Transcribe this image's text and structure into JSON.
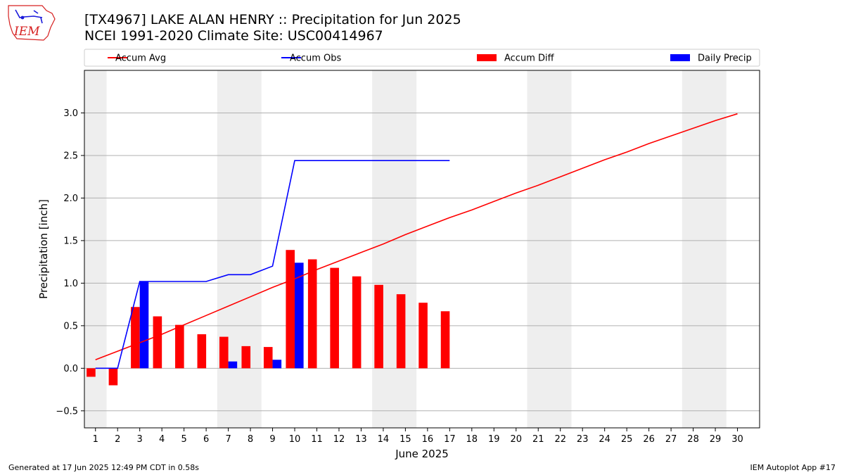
{
  "header": {
    "title": "[TX4967] LAKE ALAN HENRY :: Precipitation for Jun 2025",
    "subtitle": "NCEI 1991-2020 Climate Site: USC00414967",
    "logo_text": "IEM"
  },
  "footer": {
    "left": "Generated at 17 Jun 2025 12:49 PM CDT in 0.58s",
    "right": "IEM Autoplot App #17"
  },
  "chart_data": {
    "type": "bar",
    "title": "[TX4967] LAKE ALAN HENRY :: Precipitation for Jun 2025",
    "xlabel": "June 2025",
    "ylabel": "Precipitation [inch]",
    "xlim": [
      0.5,
      31.0
    ],
    "ylim": [
      -0.7,
      3.5
    ],
    "grid": true,
    "legend_position": "top",
    "x": [
      1,
      2,
      3,
      4,
      5,
      6,
      7,
      8,
      9,
      10,
      11,
      12,
      13,
      14,
      15,
      16,
      17,
      18,
      19,
      20,
      21,
      22,
      23,
      24,
      25,
      26,
      27,
      28,
      29,
      30
    ],
    "xticks": [
      "1",
      "2",
      "3",
      "4",
      "5",
      "6",
      "7",
      "8",
      "9",
      "10",
      "11",
      "12",
      "13",
      "14",
      "15",
      "16",
      "17",
      "18",
      "19",
      "20",
      "21",
      "22",
      "23",
      "24",
      "25",
      "26",
      "27",
      "28",
      "29",
      "30"
    ],
    "yticks": [
      "−0.5",
      "0.0",
      "0.5",
      "1.0",
      "1.5",
      "2.0",
      "2.5",
      "3.0"
    ],
    "ytick_values": [
      -0.5,
      0.0,
      0.5,
      1.0,
      1.5,
      2.0,
      2.5,
      3.0
    ],
    "weekend_shading": [
      [
        0.5,
        1.5
      ],
      [
        6.5,
        8.5
      ],
      [
        13.5,
        15.5
      ],
      [
        20.5,
        22.5
      ],
      [
        27.5,
        29.5
      ]
    ],
    "legend": [
      {
        "label": "Accum Avg",
        "kind": "line",
        "color": "#ff0000"
      },
      {
        "label": "Accum Obs",
        "kind": "line",
        "color": "#0000ff"
      },
      {
        "label": "Accum Diff",
        "kind": "bar",
        "color": "#ff0000"
      },
      {
        "label": "Daily Precip",
        "kind": "bar",
        "color": "#0000ff"
      }
    ],
    "series": [
      {
        "name": "Accum Avg",
        "kind": "line",
        "color": "#ff0000",
        "x": [
          1,
          2,
          3,
          4,
          5,
          6,
          7,
          8,
          9,
          10,
          11,
          12,
          13,
          14,
          15,
          16,
          17,
          18,
          19,
          20,
          21,
          22,
          23,
          24,
          25,
          26,
          27,
          28,
          29,
          30
        ],
        "values": [
          0.1,
          0.2,
          0.3,
          0.4,
          0.51,
          0.62,
          0.73,
          0.84,
          0.95,
          1.05,
          1.16,
          1.26,
          1.36,
          1.46,
          1.57,
          1.67,
          1.77,
          1.86,
          1.96,
          2.06,
          2.15,
          2.25,
          2.35,
          2.45,
          2.54,
          2.64,
          2.73,
          2.82,
          2.91,
          2.99
        ]
      },
      {
        "name": "Accum Obs",
        "kind": "line",
        "color": "#0000ff",
        "x": [
          1,
          2,
          3,
          4,
          5,
          6,
          7,
          8,
          9,
          10,
          11,
          12,
          13,
          14,
          15,
          16,
          17
        ],
        "values": [
          0.0,
          0.0,
          1.02,
          1.02,
          1.02,
          1.02,
          1.1,
          1.1,
          1.2,
          2.44,
          2.44,
          2.44,
          2.44,
          2.44,
          2.44,
          2.44,
          2.44
        ]
      },
      {
        "name": "Accum Diff",
        "kind": "bar",
        "color": "#ff0000",
        "x": [
          1,
          2,
          3,
          4,
          5,
          6,
          7,
          8,
          9,
          10,
          11,
          12,
          13,
          14,
          15,
          16,
          17
        ],
        "values": [
          -0.1,
          -0.2,
          0.72,
          0.61,
          0.51,
          0.4,
          0.37,
          0.26,
          0.25,
          1.39,
          1.28,
          1.18,
          1.08,
          0.98,
          0.87,
          0.77,
          0.67
        ]
      },
      {
        "name": "Daily Precip",
        "kind": "bar",
        "color": "#0000ff",
        "x": [
          1,
          2,
          3,
          4,
          5,
          6,
          7,
          8,
          9,
          10,
          11,
          12,
          13,
          14,
          15,
          16,
          17
        ],
        "values": [
          0.0,
          0.0,
          1.02,
          0.0,
          0.0,
          0.0,
          0.08,
          0.0,
          0.1,
          1.24,
          0.0,
          0.0,
          0.0,
          0.0,
          0.0,
          0.0,
          0.0
        ]
      }
    ]
  }
}
